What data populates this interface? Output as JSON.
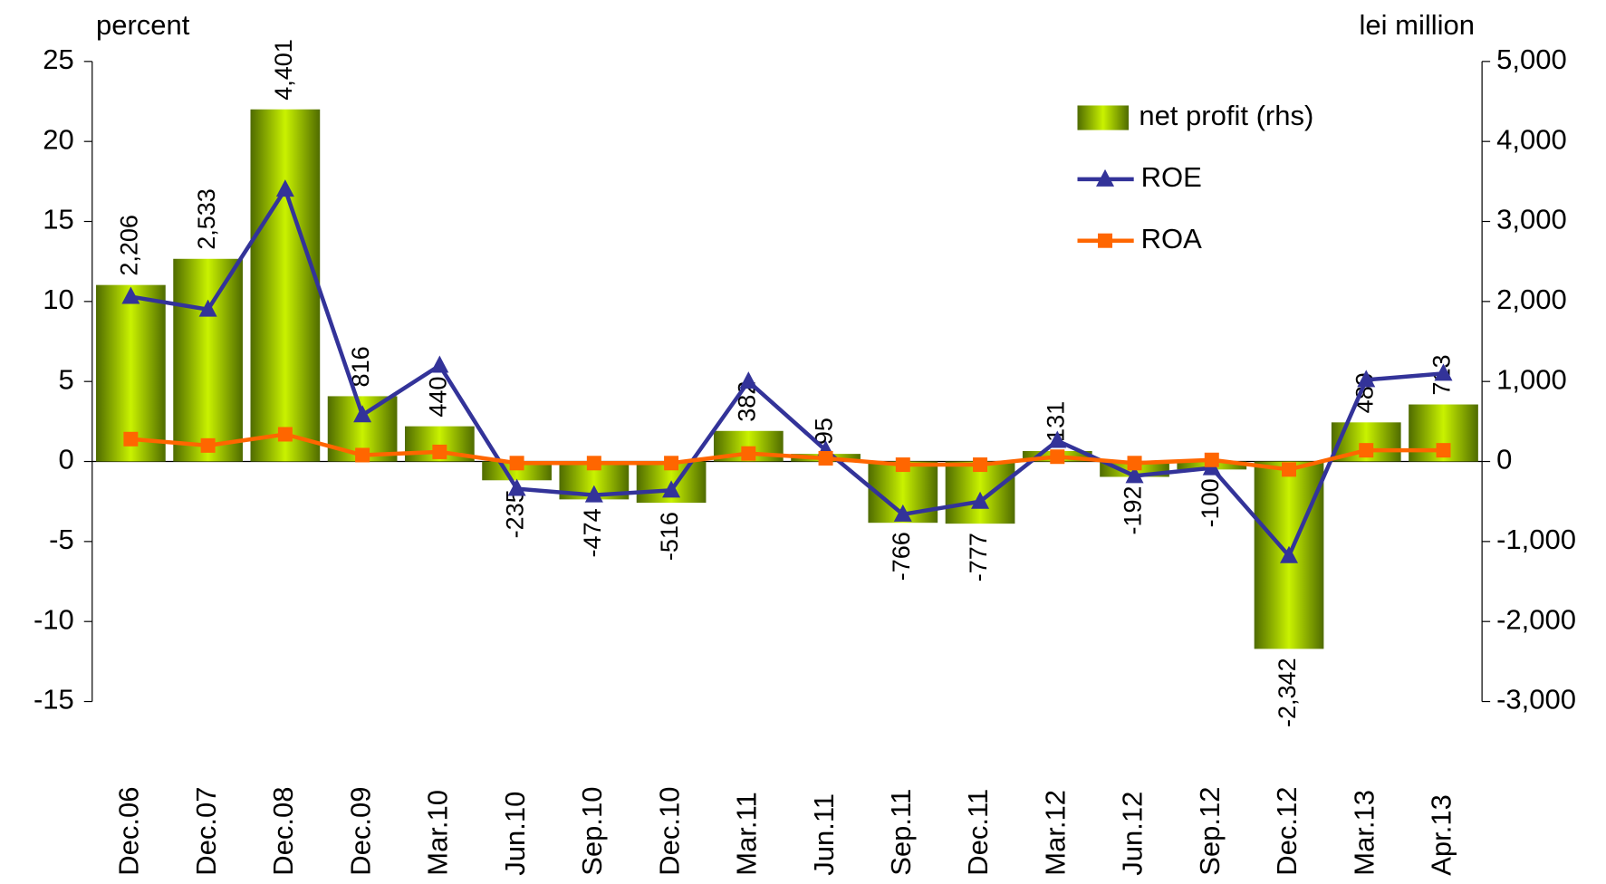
{
  "chart_data": {
    "type": "bar",
    "y_label": "percent",
    "y2_label": "lei million",
    "categories": [
      "Dec.06",
      "Dec.07",
      "Dec.08",
      "Dec.09",
      "Mar.10",
      "Jun.10",
      "Sep.10",
      "Dec.10",
      "Mar.11",
      "Jun.11",
      "Sep.11",
      "Dec.11",
      "Mar.12",
      "Jun.12",
      "Sep.12",
      "Dec.12",
      "Mar.13",
      "Apr.13"
    ],
    "series": [
      {
        "name": "net profit (rhs)",
        "type": "bar",
        "axis": "y2",
        "color": "#8fb800",
        "values": [
          2206,
          2533,
          4401,
          816,
          440,
          -235,
          -474,
          -516,
          382,
          95,
          -766,
          -777,
          131,
          -192,
          -100,
          -2342,
          489,
          713
        ],
        "value_labels": [
          "2,206",
          "2,533",
          "4,401",
          "816",
          "440",
          "-235",
          "-474",
          "-516",
          "382",
          "95",
          "-766",
          "-777",
          "131",
          "-192",
          "-100",
          "-2,342",
          "489",
          "713"
        ]
      },
      {
        "name": "ROE",
        "type": "line",
        "marker": "triangle",
        "color": "#333399",
        "values": [
          10.3,
          9.5,
          17.0,
          2.9,
          6.0,
          -1.7,
          -2.1,
          -1.8,
          5.0,
          0.7,
          -3.3,
          -2.5,
          1.3,
          -0.9,
          -0.4,
          -5.9,
          5.1,
          5.5
        ]
      },
      {
        "name": "ROA",
        "type": "line",
        "marker": "square",
        "color": "#ff6600",
        "values": [
          1.4,
          1.0,
          1.7,
          0.4,
          0.6,
          -0.1,
          -0.1,
          -0.1,
          0.5,
          0.2,
          -0.2,
          -0.2,
          0.3,
          -0.1,
          0.1,
          -0.5,
          0.7,
          0.7
        ]
      }
    ],
    "ylim": [
      -15,
      25
    ],
    "yticks": [
      -15,
      -10,
      -5,
      0,
      5,
      10,
      15,
      20,
      25
    ],
    "y2lim": [
      -3000,
      5000
    ],
    "y2ticks": [
      {
        "value": -3000,
        "label": "-3,000"
      },
      {
        "value": -2000,
        "label": "-2,000"
      },
      {
        "value": -1000,
        "label": "-1,000"
      },
      0,
      {
        "value": 1000,
        "label": "1,000"
      },
      {
        "value": 2000,
        "label": "2,000"
      },
      {
        "value": 3000,
        "label": "3,000"
      },
      {
        "value": 4000,
        "label": "4,000"
      },
      {
        "value": 5000,
        "label": "5,000"
      }
    ],
    "legend": "upper right",
    "grid": false
  }
}
